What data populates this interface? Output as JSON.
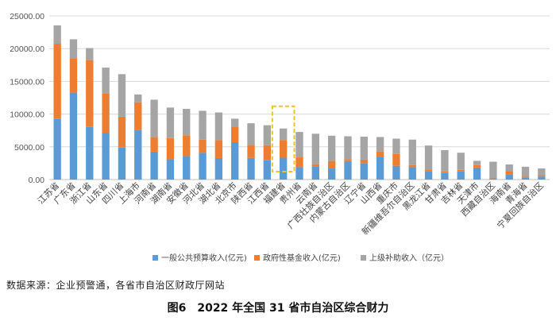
{
  "source": "数据来源：企业预警通，各省市自治区财政厅网站",
  "caption": "图6　2022 年全国 31 省市自治区综合财力",
  "chart_data": {
    "type": "bar",
    "stacked": true,
    "title": "",
    "xlabel": "",
    "ylabel": "",
    "ylim": [
      0,
      25000
    ],
    "yticks": [
      "0.00",
      "5000.00",
      "10000.00",
      "15000.00",
      "20000.00",
      "25000.00"
    ],
    "grid": true,
    "legend_position": "bottom",
    "highlight": "福建省",
    "highlight_style": "dashed-yellow-box",
    "categories": [
      "江苏省",
      "广东省",
      "浙江省",
      "山东省",
      "四川省",
      "上海市",
      "河南省",
      "湖南省",
      "安徽省",
      "河北省",
      "湖北省",
      "北京市",
      "陕西省",
      "江西省",
      "福建省",
      "贵州省",
      "云南省",
      "广西壮族自治区",
      "内蒙古自治区",
      "辽宁省",
      "山西省",
      "重庆市",
      "新疆维吾尔自治区",
      "黑龙江省",
      "甘肃省",
      "吉林省",
      "天津市",
      "西藏自治区",
      "海南省",
      "青海省",
      "宁夏回族自治区"
    ],
    "series": [
      {
        "name": "一般公共预算收入(亿元)",
        "color": "#5B9BD5",
        "values": [
          9250,
          13280,
          8040,
          7100,
          4880,
          7610,
          4260,
          3100,
          3590,
          4080,
          3280,
          5710,
          3310,
          2950,
          3340,
          1890,
          1950,
          1690,
          2820,
          2520,
          3450,
          2100,
          1890,
          1290,
          1000,
          1300,
          1850,
          180,
          830,
          330,
          460
        ]
      },
      {
        "name": "政府性基金收入(亿元)",
        "color": "#ED7D31",
        "values": [
          11500,
          5270,
          10210,
          6100,
          4720,
          4200,
          2220,
          3240,
          3170,
          2010,
          2750,
          2300,
          1990,
          2300,
          2700,
          1500,
          400,
          1150,
          300,
          530,
          840,
          1820,
          320,
          270,
          250,
          180,
          350,
          50,
          450,
          100,
          200
        ]
      },
      {
        "name": "上级补助收入（亿元）",
        "color": "#A5A5A5",
        "values": [
          2800,
          2880,
          1840,
          3900,
          6500,
          1190,
          5720,
          4660,
          4040,
          4410,
          4220,
          1290,
          3300,
          3050,
          1760,
          3880,
          4650,
          3860,
          3490,
          3500,
          2210,
          2330,
          3890,
          3640,
          3250,
          2620,
          660,
          2500,
          1030,
          1530,
          1040
        ]
      }
    ]
  }
}
